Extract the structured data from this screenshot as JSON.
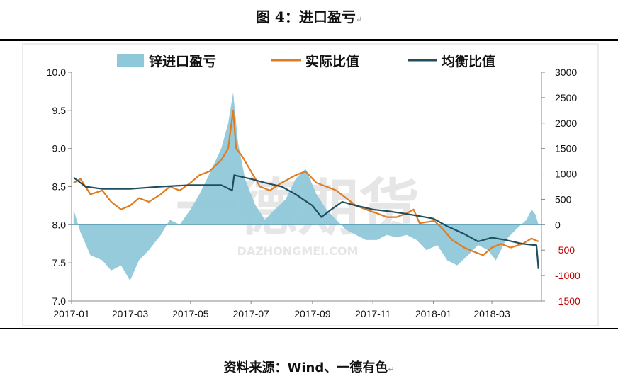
{
  "header": {
    "title": "图 4：进口盈亏",
    "para_mark": "↵"
  },
  "footer": {
    "source": "资料来源：Wind、一德有色",
    "para_mark": "↵"
  },
  "watermark": {
    "text": "一德期货",
    "subtext": "DAZHONGMEI.COM"
  },
  "colors": {
    "area": "#8fc8d8",
    "actual": "#e07b1f",
    "equilibrium": "#1f4e5f",
    "negative_ticks": "#c00000"
  },
  "chart_data": {
    "type": "line",
    "legend_position": "top",
    "grid": false,
    "y_left": {
      "ylim": [
        7.0,
        10.0
      ],
      "ticks": [
        "7.0",
        "7.5",
        "8.0",
        "8.5",
        "9.0",
        "9.5",
        "10.0"
      ]
    },
    "y_right": {
      "ylim": [
        -1500,
        3000
      ],
      "ticks": [
        "-1500",
        "-1000",
        "-500",
        "0",
        "500",
        "1000",
        "1500",
        "2000",
        "2500",
        "3000"
      ]
    },
    "x_ticks": [
      "2017-01",
      "2017-03",
      "2017-05",
      "2017-07",
      "2017-09",
      "2017-11",
      "2018-01",
      "2018-03"
    ],
    "series": [
      {
        "name": "锌进口盈亏",
        "kind": "area",
        "axis": "right",
        "points": [
          [
            "2017-01-03",
            300
          ],
          [
            "2017-01-10",
            -150
          ],
          [
            "2017-01-20",
            -600
          ],
          [
            "2017-02-01",
            -700
          ],
          [
            "2017-02-10",
            -900
          ],
          [
            "2017-02-20",
            -800
          ],
          [
            "2017-03-01",
            -1100
          ],
          [
            "2017-03-10",
            -700
          ],
          [
            "2017-03-20",
            -500
          ],
          [
            "2017-04-01",
            -200
          ],
          [
            "2017-04-10",
            100
          ],
          [
            "2017-04-20",
            0
          ],
          [
            "2017-05-01",
            300
          ],
          [
            "2017-05-10",
            600
          ],
          [
            "2017-05-20",
            1000
          ],
          [
            "2017-06-01",
            1500
          ],
          [
            "2017-06-08",
            2000
          ],
          [
            "2017-06-13",
            2600
          ],
          [
            "2017-06-18",
            1600
          ],
          [
            "2017-06-25",
            900
          ],
          [
            "2017-07-05",
            400
          ],
          [
            "2017-07-15",
            100
          ],
          [
            "2017-07-25",
            300
          ],
          [
            "2017-08-05",
            500
          ],
          [
            "2017-08-15",
            900
          ],
          [
            "2017-08-25",
            1100
          ],
          [
            "2017-09-05",
            600
          ],
          [
            "2017-09-15",
            300
          ],
          [
            "2017-09-25",
            100
          ],
          [
            "2017-10-05",
            -100
          ],
          [
            "2017-10-15",
            -200
          ],
          [
            "2017-10-25",
            -300
          ],
          [
            "2017-11-05",
            -300
          ],
          [
            "2017-11-15",
            -200
          ],
          [
            "2017-11-25",
            -250
          ],
          [
            "2017-12-05",
            -200
          ],
          [
            "2017-12-15",
            -300
          ],
          [
            "2017-12-25",
            -500
          ],
          [
            "2018-01-05",
            -400
          ],
          [
            "2018-01-15",
            -700
          ],
          [
            "2018-01-25",
            -800
          ],
          [
            "2018-02-05",
            -600
          ],
          [
            "2018-02-15",
            -400
          ],
          [
            "2018-02-25",
            -500
          ],
          [
            "2018-03-05",
            -700
          ],
          [
            "2018-03-15",
            -300
          ],
          [
            "2018-03-25",
            -100
          ],
          [
            "2018-04-05",
            100
          ],
          [
            "2018-04-10",
            300
          ],
          [
            "2018-04-14",
            200
          ],
          [
            "2018-04-17",
            0
          ]
        ]
      },
      {
        "name": "实际比值",
        "kind": "line",
        "axis": "left",
        "points": [
          [
            "2017-01-03",
            8.55
          ],
          [
            "2017-01-10",
            8.6
          ],
          [
            "2017-01-20",
            8.4
          ],
          [
            "2017-02-01",
            8.45
          ],
          [
            "2017-02-10",
            8.3
          ],
          [
            "2017-02-20",
            8.2
          ],
          [
            "2017-03-01",
            8.25
          ],
          [
            "2017-03-10",
            8.35
          ],
          [
            "2017-03-20",
            8.3
          ],
          [
            "2017-04-01",
            8.4
          ],
          [
            "2017-04-10",
            8.5
          ],
          [
            "2017-04-20",
            8.45
          ],
          [
            "2017-05-01",
            8.55
          ],
          [
            "2017-05-10",
            8.65
          ],
          [
            "2017-05-20",
            8.7
          ],
          [
            "2017-06-01",
            8.85
          ],
          [
            "2017-06-08",
            9.0
          ],
          [
            "2017-06-13",
            9.5
          ],
          [
            "2017-06-16",
            9.0
          ],
          [
            "2017-06-22",
            8.9
          ],
          [
            "2017-07-01",
            8.7
          ],
          [
            "2017-07-10",
            8.5
          ],
          [
            "2017-07-20",
            8.45
          ],
          [
            "2017-08-01",
            8.55
          ],
          [
            "2017-08-15",
            8.65
          ],
          [
            "2017-08-25",
            8.7
          ],
          [
            "2017-09-05",
            8.55
          ],
          [
            "2017-09-15",
            8.5
          ],
          [
            "2017-09-25",
            8.45
          ],
          [
            "2017-10-05",
            8.35
          ],
          [
            "2017-10-15",
            8.25
          ],
          [
            "2017-10-25",
            8.2
          ],
          [
            "2017-11-05",
            8.15
          ],
          [
            "2017-11-15",
            8.1
          ],
          [
            "2017-11-25",
            8.1
          ],
          [
            "2017-12-05",
            8.15
          ],
          [
            "2017-12-12",
            8.2
          ],
          [
            "2017-12-18",
            8.02
          ],
          [
            "2018-01-02",
            8.05
          ],
          [
            "2018-01-10",
            7.95
          ],
          [
            "2018-01-20",
            7.8
          ],
          [
            "2018-02-01",
            7.7
          ],
          [
            "2018-02-10",
            7.65
          ],
          [
            "2018-02-20",
            7.6
          ],
          [
            "2018-03-01",
            7.7
          ],
          [
            "2018-03-10",
            7.75
          ],
          [
            "2018-03-20",
            7.7
          ],
          [
            "2018-04-01",
            7.75
          ],
          [
            "2018-04-10",
            7.82
          ],
          [
            "2018-04-17",
            7.78
          ]
        ]
      },
      {
        "name": "均衡比值",
        "kind": "line",
        "axis": "left",
        "points": [
          [
            "2017-01-03",
            8.62
          ],
          [
            "2017-01-15",
            8.5
          ],
          [
            "2017-02-01",
            8.47
          ],
          [
            "2017-03-01",
            8.47
          ],
          [
            "2017-04-01",
            8.5
          ],
          [
            "2017-05-01",
            8.52
          ],
          [
            "2017-06-01",
            8.52
          ],
          [
            "2017-06-12",
            8.45
          ],
          [
            "2017-06-14",
            8.65
          ],
          [
            "2017-07-01",
            8.6
          ],
          [
            "2017-07-15",
            8.55
          ],
          [
            "2017-08-01",
            8.5
          ],
          [
            "2017-08-15",
            8.4
          ],
          [
            "2017-09-01",
            8.25
          ],
          [
            "2017-09-10",
            8.1
          ],
          [
            "2017-09-20",
            8.2
          ],
          [
            "2017-10-01",
            8.3
          ],
          [
            "2017-10-15",
            8.25
          ],
          [
            "2017-11-01",
            8.2
          ],
          [
            "2017-11-15",
            8.18
          ],
          [
            "2017-12-01",
            8.15
          ],
          [
            "2017-12-15",
            8.12
          ],
          [
            "2018-01-01",
            8.08
          ],
          [
            "2018-01-15",
            7.98
          ],
          [
            "2018-02-01",
            7.88
          ],
          [
            "2018-02-15",
            7.78
          ],
          [
            "2018-03-01",
            7.83
          ],
          [
            "2018-03-15",
            7.8
          ],
          [
            "2018-04-01",
            7.75
          ],
          [
            "2018-04-15",
            7.73
          ],
          [
            "2018-04-17",
            7.42
          ]
        ]
      }
    ]
  }
}
